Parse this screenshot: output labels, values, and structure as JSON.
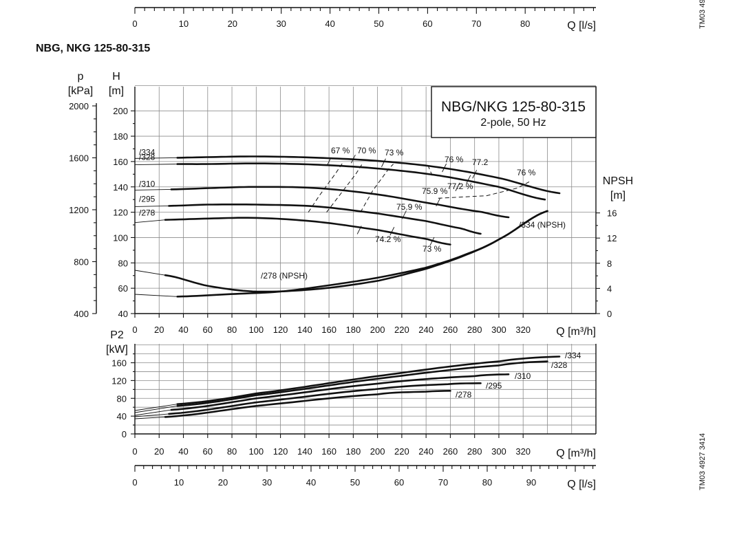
{
  "page": {
    "heading": "NBG, NKG 125-80-315",
    "side_code_top": "TM03 49",
    "side_code_bottom": "TM03 4927 3414",
    "box_title": "NBG/NKG 125-80-315",
    "box_subtitle": "2-pole, 50 Hz"
  },
  "chart_data": [
    {
      "type": "line",
      "title": "NBG/NKG 125-80-315",
      "subtitle": "2-pole, 50 Hz",
      "xlabel": "Q [m³/h]",
      "xlabel_top": "Q [l/s]",
      "ylabel": "H [m]",
      "ylabel_left": "p [kPa]",
      "ylabel_right": "NPSH [m]",
      "xlim": [
        0,
        380
      ],
      "ylim": [
        40,
        220
      ],
      "grid": true,
      "x_ticks": [
        0,
        20,
        40,
        60,
        80,
        100,
        120,
        140,
        160,
        180,
        200,
        220,
        240,
        260,
        280,
        300,
        320
      ],
      "top_axis_ticks_ls": [
        0,
        10,
        20,
        30,
        40,
        50,
        60,
        70,
        80
      ],
      "h_ticks": [
        40,
        60,
        80,
        100,
        120,
        140,
        160,
        180,
        200
      ],
      "p_ticks": [
        400,
        800,
        1200,
        1600,
        2000
      ],
      "npsh_ticks": [
        0,
        4,
        8,
        12,
        16
      ],
      "series": [
        {
          "name": "/334",
          "kind": "head",
          "x": [
            35,
            60,
            100,
            150,
            200,
            250,
            300,
            350
          ],
          "y": [
            163,
            163.5,
            164,
            163,
            160.5,
            155.5,
            147,
            135
          ]
        },
        {
          "name": "/328",
          "kind": "head",
          "x": [
            35,
            60,
            100,
            150,
            200,
            250,
            300,
            338
          ],
          "y": [
            158,
            158,
            158.5,
            157.5,
            154.5,
            149,
            140,
            130
          ]
        },
        {
          "name": "/310",
          "kind": "head",
          "x": [
            30,
            60,
            100,
            150,
            200,
            250,
            287,
            308
          ],
          "y": [
            138,
            139,
            140,
            139,
            134,
            126,
            120,
            116
          ]
        },
        {
          "name": "/295",
          "kind": "head",
          "x": [
            28,
            60,
            100,
            150,
            200,
            240,
            270,
            285
          ],
          "y": [
            125,
            126,
            126,
            124.5,
            119,
            113,
            107,
            103
          ]
        },
        {
          "name": "/278",
          "kind": "head",
          "x": [
            25,
            60,
            100,
            150,
            200,
            240,
            260
          ],
          "y": [
            114,
            115,
            115.5,
            112.5,
            106,
            99,
            94.5
          ]
        },
        {
          "name": "/278 (NPSH)",
          "kind": "npsh",
          "x": [
            25,
            60,
            100,
            150,
            200,
            240,
            270,
            300,
            340
          ],
          "y": [
            6.1,
            4.4,
            3.5,
            3.9,
            5.2,
            7.1,
            9.1,
            11.8,
            16.3
          ]
        },
        {
          "name": "/334 (NPSH)",
          "kind": "npsh",
          "x": [
            35,
            80,
            120,
            160,
            200,
            240,
            270,
            300,
            340
          ],
          "y": [
            2.7,
            3.1,
            3.5,
            4.5,
            5.7,
            7.3,
            9.2,
            11.8,
            16.3
          ]
        }
      ],
      "efficiency_labels": [
        "67 %",
        "70 %",
        "73 %",
        "76 %",
        "77.2",
        "76 %",
        "75.9 %",
        "77.2 %",
        "75.9 %",
        "74.2 %",
        "73 %"
      ]
    },
    {
      "type": "line",
      "xlabel": "Q [m³/h]",
      "xlabel_bottom": "Q [l/s]",
      "ylabel": "P2 [kW]",
      "xlim": [
        0,
        380
      ],
      "ylim": [
        0,
        190
      ],
      "grid": true,
      "x_ticks": [
        0,
        20,
        40,
        60,
        80,
        100,
        120,
        140,
        160,
        180,
        200,
        220,
        240,
        260,
        280,
        300,
        320
      ],
      "bottom_axis_ticks_ls": [
        0,
        10,
        20,
        30,
        40,
        50,
        60,
        70,
        80,
        90
      ],
      "y_ticks": [
        0,
        40,
        80,
        120,
        160
      ],
      "series": [
        {
          "name": "/334",
          "x": [
            35,
            100,
            200,
            300,
            350
          ],
          "y": [
            67,
            91,
            130,
            163,
            174
          ]
        },
        {
          "name": "/328",
          "x": [
            35,
            100,
            200,
            300,
            340
          ],
          "y": [
            63,
            87,
            124,
            154,
            163
          ]
        },
        {
          "name": "/310",
          "x": [
            30,
            100,
            200,
            280,
            308
          ],
          "y": [
            54,
            80,
            113,
            130,
            134
          ]
        },
        {
          "name": "/295",
          "x": [
            28,
            100,
            200,
            260,
            285
          ],
          "y": [
            45,
            71,
            101,
            112,
            114
          ]
        },
        {
          "name": "/278",
          "x": [
            25,
            100,
            200,
            240,
            260
          ],
          "y": [
            38,
            63,
            89,
            95,
            97
          ]
        }
      ]
    }
  ]
}
